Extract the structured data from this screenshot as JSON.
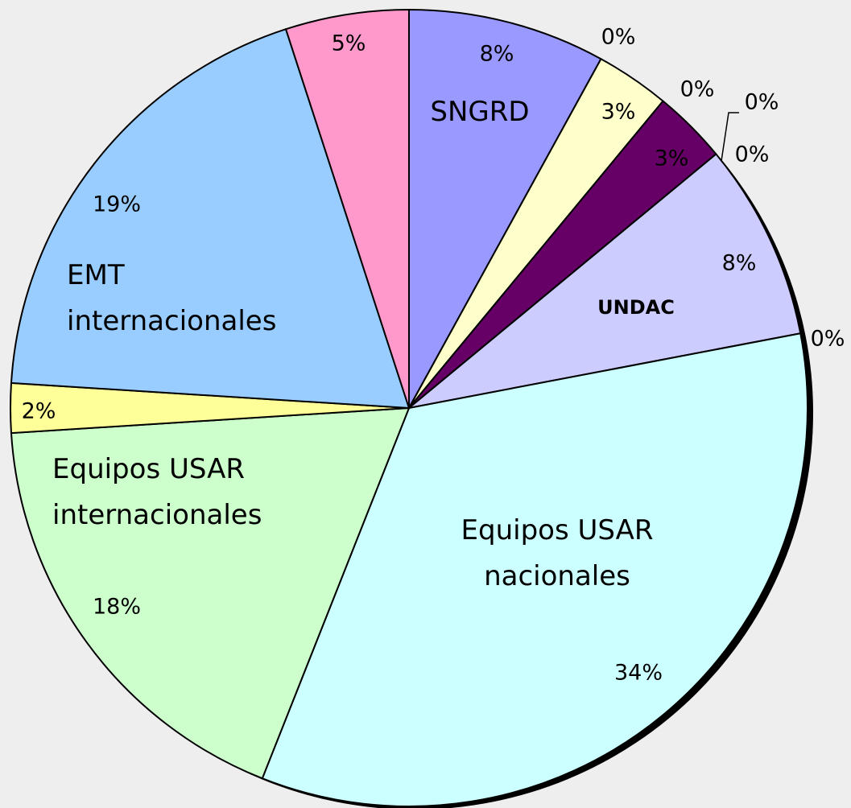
{
  "chart_data": {
    "type": "pie",
    "categories": [
      "SNGRD",
      null,
      null,
      null,
      null,
      null,
      null,
      "UNDAC",
      null,
      "Equipos USAR\nnacionales",
      "Equipos USAR\ninternacionales",
      null,
      "EMT\ninternacionales",
      null
    ],
    "values": [
      8,
      0,
      3,
      0,
      3,
      0,
      0,
      8,
      0,
      34,
      18,
      2,
      19,
      5
    ],
    "value_labels": [
      "8%",
      "0%",
      "3%",
      "0%",
      "3%",
      "0%",
      "0%",
      "8%",
      "0%",
      "34%",
      "18%",
      "2%",
      "19%",
      "5%"
    ],
    "colors": [
      "#9999ff",
      "#ffffcc",
      "#ffffcc",
      "#660066",
      "#660066",
      "#ccccff",
      "#ccccff",
      "#ccccff",
      "#ccffff",
      "#ccffff",
      "#ccffcc",
      "#ffff99",
      "#99ccff",
      "#ff99cc"
    ]
  }
}
